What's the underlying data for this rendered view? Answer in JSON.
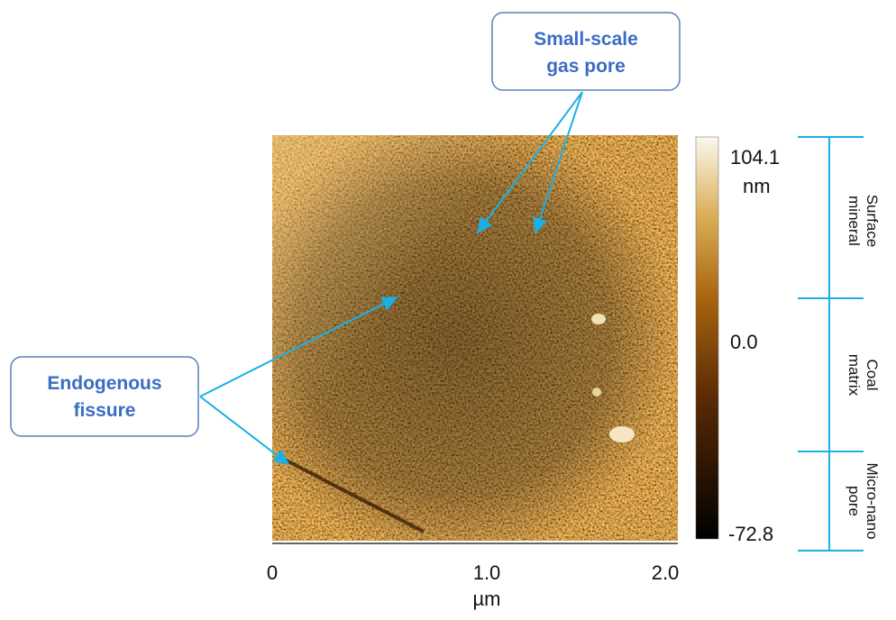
{
  "callouts": [
    {
      "lines": [
        "Small-scale",
        "gas pore"
      ]
    },
    {
      "lines": [
        "Endogenous",
        "fissure"
      ]
    }
  ],
  "x_axis": {
    "ticks": [
      "0",
      "1.0",
      "2.0"
    ],
    "unit": "µm"
  },
  "colorbar": {
    "max": "104.1",
    "unit": "nm",
    "mid": "0.0",
    "min": "-72.8"
  },
  "regions": [
    {
      "lines": [
        "Surface",
        "mineral"
      ]
    },
    {
      "lines": [
        "Coal",
        "matrix"
      ]
    },
    {
      "lines": [
        "Micro-nano",
        "pore"
      ]
    }
  ]
}
